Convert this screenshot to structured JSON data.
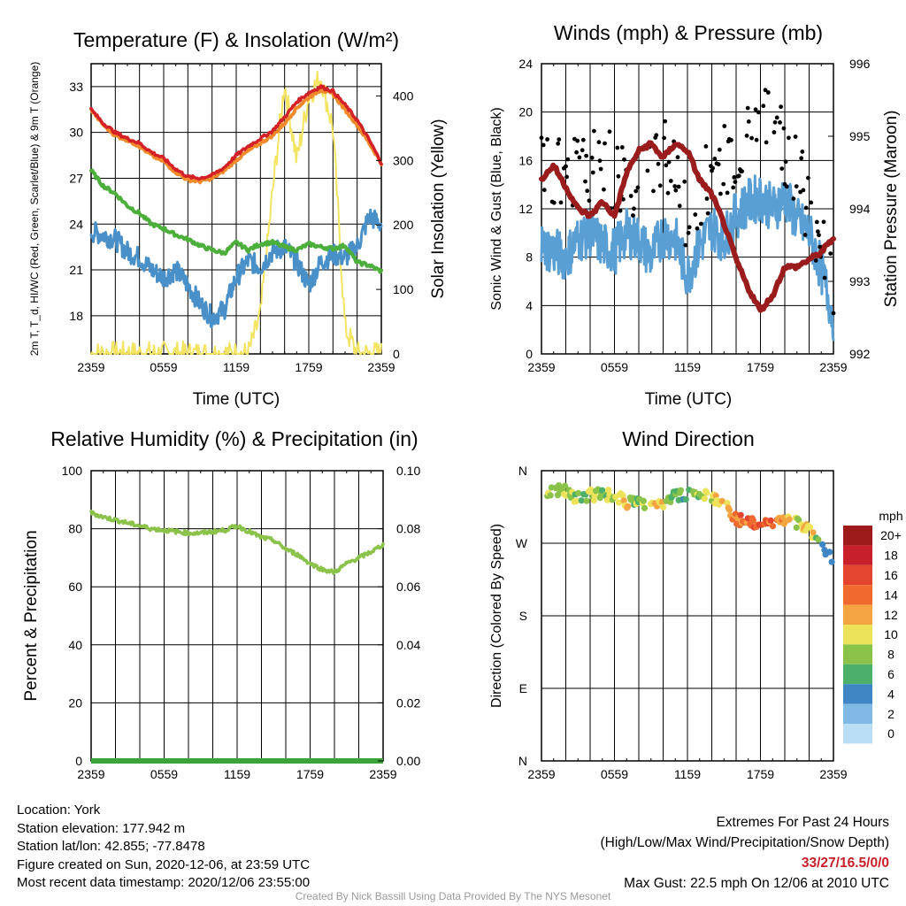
{
  "chart_data": [
    {
      "type": "line",
      "title": "Temperature (F) & Insolation (W/m²)",
      "xlabel": "Time (UTC)",
      "ylabel_left": "2m T, T_d, HI/WC (Red, Green, Scarlet/Blue) & 9m T (Orange)",
      "ylabel_right": "Solar Insolation (Yellow)",
      "x_ticks": [
        "2359",
        "0559",
        "1159",
        "1759",
        "2359"
      ],
      "y_left_ticks": [
        18,
        21,
        24,
        27,
        30,
        33
      ],
      "y_left_range": [
        15.5,
        34.5
      ],
      "y_right_ticks": [
        0,
        100,
        200,
        300,
        400
      ],
      "y_right_range": [
        0,
        450
      ],
      "x_hours": [
        0,
        1,
        2,
        3,
        4,
        5,
        6,
        7,
        8,
        9,
        10,
        11,
        12,
        13,
        14,
        15,
        16,
        17,
        18,
        19,
        20,
        21,
        22,
        23,
        24
      ],
      "series": [
        {
          "color": "#4a90c8",
          "axis": "left",
          "values": [
            23.5,
            23.3,
            23.0,
            22.2,
            21.8,
            21.0,
            20.5,
            21.0,
            20.0,
            18.8,
            17.9,
            18.4,
            20.5,
            21.6,
            21.2,
            22.2,
            22.5,
            21.5,
            20.0,
            21.5,
            22.0,
            21.8,
            22.5,
            24.5,
            24.0
          ]
        },
        {
          "color": "#4caf3c",
          "axis": "left",
          "values": [
            27.5,
            26.5,
            26.0,
            25.2,
            24.7,
            24.0,
            23.7,
            23.3,
            23.0,
            22.6,
            22.3,
            22.1,
            22.8,
            22.3,
            22.7,
            22.8,
            22.5,
            22.3,
            22.7,
            22.5,
            22.4,
            22.6,
            21.5,
            21.3,
            20.9
          ]
        },
        {
          "color": "#f08a2a",
          "axis": "left",
          "values": [
            31.5,
            30.5,
            29.8,
            29.5,
            29.1,
            28.5,
            28.1,
            27.4,
            26.9,
            26.8,
            27.0,
            27.5,
            28.2,
            28.8,
            29.3,
            29.8,
            30.6,
            31.6,
            32.3,
            32.8,
            32.5,
            31.5,
            30.5,
            29.3,
            28.0
          ]
        },
        {
          "color": "#d42027",
          "axis": "left",
          "values": [
            31.5,
            30.6,
            30.0,
            29.6,
            29.3,
            28.7,
            28.3,
            27.6,
            27.1,
            27.0,
            27.2,
            27.7,
            28.5,
            29.1,
            29.6,
            30.1,
            31.0,
            32.0,
            32.6,
            33.0,
            32.7,
            31.8,
            30.8,
            29.5,
            28.0
          ]
        },
        {
          "color": "#f3e462",
          "axis": "right",
          "values": [
            0,
            0,
            0,
            0,
            0,
            0,
            0,
            0,
            0,
            0,
            0,
            0,
            0,
            0,
            60,
            250,
            420,
            300,
            400,
            430,
            350,
            40,
            0,
            0,
            0
          ]
        }
      ]
    },
    {
      "type": "line",
      "title": "Winds (mph) & Pressure (mb)",
      "xlabel": "Time (UTC)",
      "ylabel_left": "Sonic Wind & Gust (Blue, Black)",
      "ylabel_right": "Station Pressure (Maroon)",
      "x_ticks": [
        "2359",
        "0559",
        "1159",
        "1759",
        "2359"
      ],
      "y_left_ticks": [
        0,
        4,
        8,
        12,
        16,
        20,
        24
      ],
      "y_left_range": [
        0,
        24
      ],
      "y_right_ticks": [
        992,
        993,
        994,
        995,
        996
      ],
      "y_right_range": [
        992,
        996
      ],
      "x_hours": [
        0,
        1,
        2,
        3,
        4,
        5,
        6,
        7,
        8,
        9,
        10,
        11,
        12,
        13,
        14,
        15,
        16,
        17,
        18,
        19,
        20,
        21,
        22,
        23,
        24
      ],
      "series": [
        {
          "color": "#5a9fd4",
          "axis": "left",
          "name": "",
          "values": [
            9.0,
            8.5,
            8.0,
            9.5,
            10.0,
            9.0,
            8.5,
            10.0,
            9.5,
            8.0,
            10.0,
            9.5,
            6.5,
            9.0,
            10.5,
            9.5,
            11.5,
            12.5,
            13.0,
            12.0,
            13.0,
            11.0,
            10.0,
            7.0,
            3.0
          ]
        },
        {
          "color": "#000000",
          "axis": "left",
          "name": "",
          "type": "scatter",
          "values": [
            15,
            16,
            14,
            17,
            16,
            17,
            14,
            15,
            13,
            16,
            17,
            14,
            11,
            13,
            15,
            16,
            17,
            18,
            18,
            19,
            17,
            16,
            12,
            10,
            6
          ]
        },
        {
          "color": "#9b1c1c",
          "axis": "right",
          "values": [
            994.4,
            994.6,
            994.3,
            994.0,
            993.9,
            994.1,
            993.9,
            994.5,
            994.8,
            994.9,
            994.7,
            994.9,
            994.8,
            994.4,
            994.2,
            993.8,
            993.3,
            992.9,
            992.6,
            992.8,
            993.2,
            993.2,
            993.3,
            993.4,
            993.6
          ]
        }
      ]
    },
    {
      "type": "line",
      "title": "Relative Humidity (%) & Precipitation (in)",
      "xlabel": "",
      "ylabel_left": "Percent & Precipitation",
      "x_ticks": [
        "2359",
        "0559",
        "1159",
        "1759",
        "2359"
      ],
      "y_left_ticks": [
        0,
        20,
        40,
        60,
        80,
        100
      ],
      "y_left_range": [
        0,
        100
      ],
      "y_right_ticks": [
        "0.00",
        "0.02",
        "0.04",
        "0.06",
        "0.08",
        "0.10"
      ],
      "y_right_range": [
        0,
        0.1
      ],
      "x_hours": [
        0,
        1,
        2,
        3,
        4,
        5,
        6,
        7,
        8,
        9,
        10,
        11,
        12,
        13,
        14,
        15,
        16,
        17,
        18,
        19,
        20,
        21,
        22,
        23,
        24
      ],
      "series": [
        {
          "color": "#8bc34a",
          "axis": "left",
          "values": [
            85.5,
            84,
            83,
            82,
            81,
            80,
            79.5,
            79,
            78.5,
            78.5,
            79,
            79.5,
            81,
            79,
            77,
            76,
            73,
            71,
            68,
            66,
            65,
            68,
            70,
            72,
            74.5
          ]
        },
        {
          "color": "#3aa33a",
          "axis": "right",
          "values": [
            0,
            0,
            0,
            0,
            0,
            0,
            0,
            0,
            0,
            0,
            0,
            0,
            0,
            0,
            0,
            0,
            0,
            0,
            0,
            0,
            0,
            0,
            0,
            0,
            0
          ]
        }
      ]
    },
    {
      "type": "scatter",
      "title": "Wind Direction",
      "ylabel": "Direction (Colored By Speed)",
      "x_ticks": [
        "2359",
        "0559",
        "1159",
        "1759",
        "2359"
      ],
      "y_ticks": [
        "N",
        "E",
        "S",
        "W",
        "N"
      ],
      "y_range": [
        0,
        360
      ],
      "x_hours": [
        0,
        1,
        2,
        3,
        4,
        5,
        6,
        7,
        8,
        9,
        10,
        11,
        12,
        13,
        14,
        15,
        16,
        17,
        18,
        19,
        20,
        21,
        22,
        23,
        24
      ],
      "direction_deg": [
        335,
        335,
        335,
        325,
        330,
        330,
        330,
        320,
        320,
        315,
        320,
        330,
        330,
        332,
        325,
        320,
        300,
        295,
        292,
        295,
        298,
        296,
        285,
        270,
        245
      ],
      "speed_mph": [
        9,
        8,
        10,
        8,
        9,
        8,
        9,
        11,
        7,
        10,
        11,
        7,
        5,
        8,
        9,
        12,
        13,
        14,
        15,
        14,
        13,
        9,
        12,
        4,
        3
      ],
      "legend": {
        "title": "mph",
        "labels": [
          "20+",
          "18",
          "16",
          "14",
          "12",
          "10",
          "8",
          "6",
          "4",
          "2",
          "0"
        ],
        "colors": [
          "#9e1b1b",
          "#c8202a",
          "#e4452e",
          "#f06a2f",
          "#f4a542",
          "#ede35a",
          "#8bc34a",
          "#4caf6a",
          "#3f86c4",
          "#7fb9e4",
          "#b9ddf5"
        ]
      }
    }
  ],
  "footer": {
    "location": "Location: York",
    "elevation": "Station elevation: 177.942 m",
    "latlon": "Station lat/lon: 42.855; -77.8478",
    "created": "Figure created on Sun, 2020-12-06, at 23:59 UTC",
    "recent": "Most recent data timestamp: 2020/12/06 23:55:00",
    "extremes_title": "Extremes For Past 24 Hours",
    "extremes_desc": "(High/Low/Max Wind/Precipitation/Snow Depth)",
    "extremes_values": "33/27/16.5/0/0",
    "max_gust": "Max Gust: 22.5 mph On 12/06 at 2010 UTC",
    "credit": "Created By Nick Bassill Using Data Provided By The NYS Mesonet"
  }
}
